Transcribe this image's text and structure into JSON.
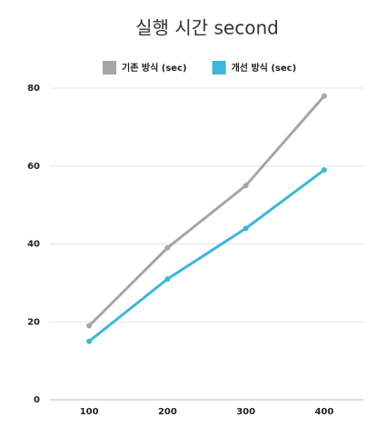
{
  "chart_data": {
    "type": "line",
    "title": "실행 시간 second",
    "categories": [
      "100",
      "200",
      "300",
      "400"
    ],
    "series": [
      {
        "name": "기존 방식 (sec)",
        "color": "#a6a6a6",
        "values": [
          19,
          39,
          55,
          78
        ]
      },
      {
        "name": "개선 방식 (sec)",
        "color": "#3fb6d5",
        "values": [
          15,
          31,
          44,
          59
        ]
      }
    ],
    "ylim": [
      0,
      80
    ],
    "yticks": [
      0,
      20,
      40,
      60,
      80
    ],
    "grid": true,
    "legend": "top"
  }
}
